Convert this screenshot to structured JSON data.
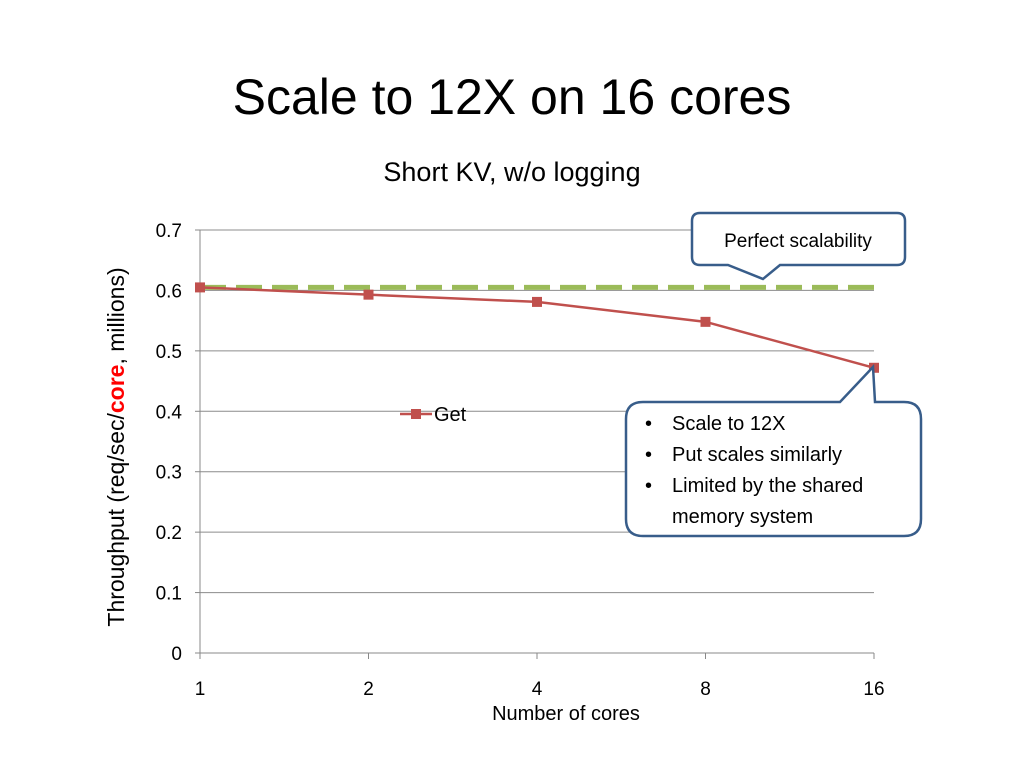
{
  "slide": {
    "title": "Scale to 12X on 16 cores"
  },
  "chart_data": {
    "type": "line",
    "title": "Short KV, w/o logging",
    "xlabel": "Number of cores",
    "ylabel": {
      "before": "Throughput (req/sec/",
      "emphasis": "core",
      "after": ", millions)"
    },
    "emphasis_color": "#FF0000",
    "categories": [
      "1",
      "2",
      "4",
      "8",
      "16"
    ],
    "ylim": [
      0,
      0.7
    ],
    "yticks": [
      "0",
      "0.1",
      "0.2",
      "0.3",
      "0.4",
      "0.5",
      "0.6",
      "0.7"
    ],
    "grid": true,
    "legend_position": "center-left",
    "series": [
      {
        "name": "Get",
        "values": [
          0.605,
          0.593,
          0.581,
          0.548,
          0.472
        ],
        "color": "#C0504D",
        "marker": "square"
      },
      {
        "name": "",
        "values": [
          0.605,
          0.605,
          0.605,
          0.605,
          0.605
        ],
        "color": "#9BBB59",
        "style": "dashed"
      }
    ],
    "annotations": {
      "perfect": {
        "text": "Perfect scalability",
        "border_color": "#385D8A"
      },
      "notes": {
        "bullets": [
          "Scale to 12X",
          "Put scales similarly",
          "Limited by the shared",
          "memory system"
        ],
        "bullet_char": "•",
        "border_color": "#385D8A"
      }
    }
  }
}
